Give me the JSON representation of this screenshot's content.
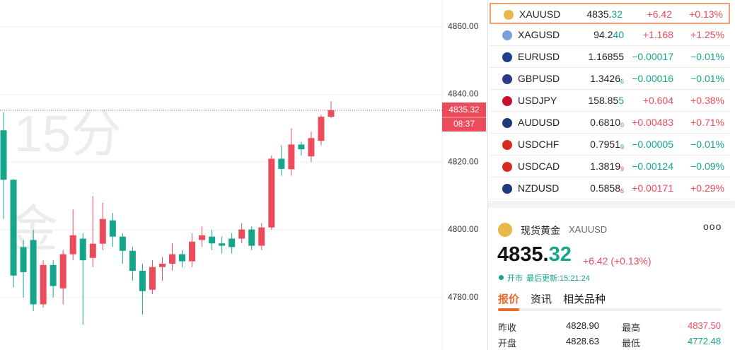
{
  "chart_data": {
    "type": "candlestick",
    "watermark": [
      "15分",
      "金"
    ],
    "open": [
      4829.4,
      4814.8,
      4794.9,
      4797.0,
      4778.0,
      4789.6,
      4782.7,
      4792.8,
      4797.4,
      4791.7,
      4795.9,
      4802.8,
      4798.0,
      4793.8,
      4787.9,
      4782.3,
      4789.0,
      4790.0,
      4792.8,
      4790.7,
      4797.0,
      4798.0,
      4796.0,
      4797.4,
      4797.4,
      4800.1,
      4795.3,
      4800.7,
      4821.0,
      4817.9,
      4825.2,
      4821.7,
      4826.3,
      4833.4
    ],
    "high": [
      4834.7,
      4815.0,
      4797.0,
      4800.0,
      4791.0,
      4791.0,
      4794.0,
      4806.0,
      4799.0,
      4810.0,
      4808.0,
      4805.0,
      4799.0,
      4795.0,
      4790.0,
      4791.0,
      4792.0,
      4796.0,
      4794.0,
      4799.0,
      4801.0,
      4800.0,
      4798.0,
      4799.0,
      4802.0,
      4801.0,
      4802.0,
      4822.0,
      4825.0,
      4830.0,
      4826.0,
      4829.0,
      4834.0,
      4838.0
    ],
    "low": [
      4803.2,
      4783.0,
      4780.0,
      4776.0,
      4777.0,
      4780.0,
      4778.0,
      4791.0,
      4772.0,
      4789.0,
      4794.0,
      4795.0,
      4790.0,
      4785.0,
      4775.0,
      4781.0,
      4785.0,
      4788.0,
      4789.0,
      4789.0,
      4795.0,
      4794.0,
      4793.0,
      4793.0,
      4796.0,
      4794.0,
      4794.0,
      4800.0,
      4816.0,
      4816.0,
      4822.0,
      4820.0,
      4825.0,
      4833.0
    ],
    "close": [
      4814.8,
      4786.5,
      4787.5,
      4778.0,
      4789.6,
      4783.4,
      4792.8,
      4798.4,
      4791.0,
      4795.9,
      4803.2,
      4798.0,
      4793.8,
      4787.9,
      4781.9,
      4789.0,
      4790.0,
      4792.8,
      4790.7,
      4796.5,
      4798.4,
      4796.0,
      4795.3,
      4794.9,
      4800.1,
      4795.3,
      4800.7,
      4821.0,
      4818.0,
      4825.2,
      4823.8,
      4827.1,
      4833.4,
      4835.32
    ],
    "up_color": "#ec4b5c",
    "down_color": "#15a58a",
    "ylim": [
      4764.5,
      4867.9
    ],
    "yticks": [
      {
        "value": 4780,
        "label": "4780.00"
      },
      {
        "value": 4800,
        "label": "4800.00"
      },
      {
        "value": 4820,
        "label": "4820.00"
      },
      {
        "value": 4840,
        "label": "4840.00"
      },
      {
        "value": 4860,
        "label": "4860.00"
      }
    ],
    "grid": true,
    "last_price": {
      "value": 4835.32,
      "countdown": "08:37"
    }
  },
  "watchlist": [
    {
      "symbol": "XAUUSD",
      "price": "4835.",
      "price_hl": "32",
      "accent": "#15a58a",
      "change": "+6.42",
      "pct": "+0.13%",
      "selected": true,
      "icon": "#e8b84a"
    },
    {
      "symbol": "XAGUSD",
      "price": "94.2",
      "price_hl": "40",
      "accent": "#15a58a",
      "change": "+1.168",
      "pct": "+1.25%",
      "icon": "#7aa0d8"
    },
    {
      "symbol": "EURUSD",
      "price": "1.16855",
      "change": "−0.00017",
      "pct": "−0.01%",
      "icon": "#1f3f8f"
    },
    {
      "symbol": "GBPUSD",
      "price": "1.3426",
      "price_sub": "6",
      "accent": "#15a58a",
      "change": "−0.00016",
      "pct": "−0.01%",
      "icon": "#283c8a"
    },
    {
      "symbol": "USDJPY",
      "price": "158.85",
      "price_hl": "5",
      "accent": "#15a58a",
      "change": "+0.604",
      "pct": "+0.38%",
      "icon": "#c8102e"
    },
    {
      "symbol": "AUDUSD",
      "price": "0.6810",
      "price_sub": "0",
      "accent": "#ec4b5c",
      "change": "+0.00483",
      "pct": "+0.71%",
      "icon": "#1f3a7a"
    },
    {
      "symbol": "USDCHF",
      "price": "0.7951",
      "price_sub": "9",
      "accent": "#15a58a",
      "change": "−0.00005",
      "pct": "−0.01%",
      "icon": "#d52b1e"
    },
    {
      "symbol": "USDCAD",
      "price": "1.3819",
      "price_sub": "9",
      "accent": "#ec4b5c",
      "change": "−0.00124",
      "pct": "−0.09%",
      "icon": "#d52b1e"
    },
    {
      "symbol": "NZDUSD",
      "price": "0.5858",
      "price_sub": "6",
      "accent": "#ec4b5c",
      "change": "+0.00171",
      "pct": "+0.29%",
      "icon": "#1f3a7a"
    }
  ],
  "detail": {
    "name": "现货黄金",
    "symbol": "XAUUSD",
    "price": "4835.",
    "price_hl": "32",
    "change": "+6.42 (+0.13%)",
    "status": "开市",
    "updated": "最后更新:15:21:24",
    "tabs": [
      "报价",
      "资讯",
      "相关品种"
    ],
    "stats": [
      {
        "label": "昨收",
        "value": "4828.90"
      },
      {
        "label": "最高",
        "value": "4837.50",
        "color": "#ec4b5c"
      },
      {
        "label": "开盘",
        "value": "4828.63"
      },
      {
        "label": "最低",
        "value": "4772.48",
        "color": "#15a58a"
      }
    ]
  }
}
